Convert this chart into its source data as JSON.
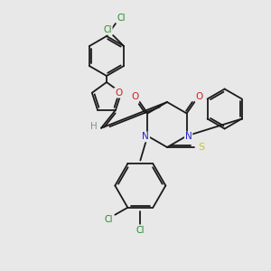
{
  "background_color": "#e8e8e8",
  "bond_color": "#1a1a1a",
  "atom_colors": {
    "C": "#1a1a1a",
    "H": "#7a9a8a",
    "N": "#2222cc",
    "O": "#cc2222",
    "S": "#cccc00",
    "Cl": "#228822"
  },
  "figsize": [
    3.0,
    3.0
  ],
  "dpi": 100
}
